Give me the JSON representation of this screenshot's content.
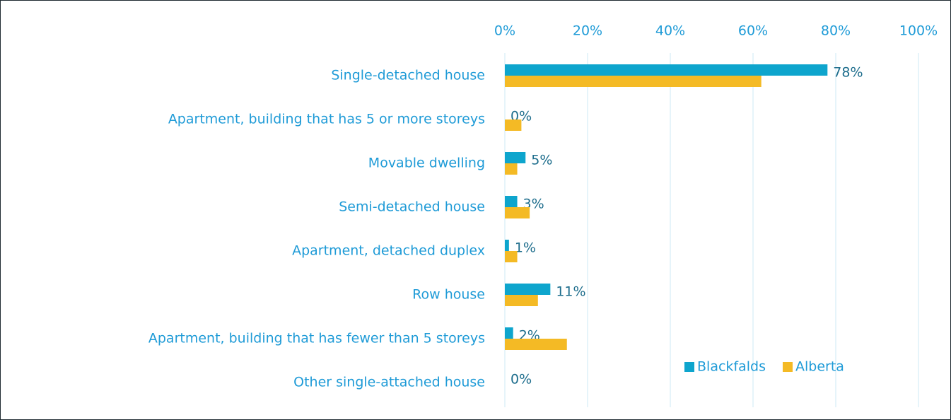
{
  "chart_data": {
    "type": "bar",
    "orientation": "horizontal",
    "categories": [
      "Single-detached house",
      "Apartment, building that has 5 or more storeys",
      "Movable dwelling",
      "Semi-detached house",
      "Apartment, detached duplex",
      "Row house",
      "Apartment, building that has fewer than 5 storeys",
      "Other single-attached house"
    ],
    "series": [
      {
        "name": "Blackfalds",
        "color": "#0ea5cd",
        "values": [
          78,
          0,
          5,
          3,
          1,
          11,
          2,
          0
        ],
        "value_labels": [
          "78%",
          "0%",
          "5%",
          "3%",
          "1%",
          "11%",
          "2%",
          "0%"
        ]
      },
      {
        "name": "Alberta",
        "color": "#f4ba25",
        "values": [
          62,
          4,
          3,
          6,
          3,
          8,
          15,
          0
        ]
      }
    ],
    "xlim": [
      0,
      100
    ],
    "xticks": [
      {
        "value": 0,
        "label": "0%"
      },
      {
        "value": 20,
        "label": "20%"
      },
      {
        "value": 40,
        "label": "40%"
      },
      {
        "value": 60,
        "label": "60%"
      },
      {
        "value": 80,
        "label": "80%"
      },
      {
        "value": 100,
        "label": "100%"
      }
    ],
    "grid": true,
    "legend": "lower right"
  }
}
